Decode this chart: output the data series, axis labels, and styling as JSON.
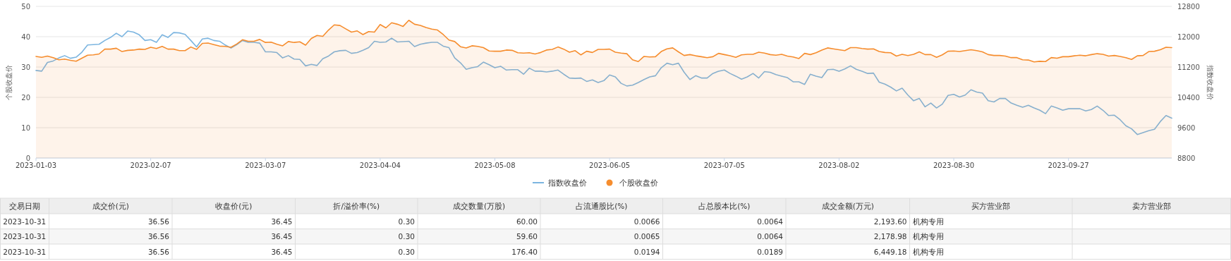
{
  "chart_data": [
    {
      "type": "line",
      "ylabel": "个股收盘价",
      "y2label": "指数收盘价",
      "ylim": [
        0,
        50
      ],
      "yticks": [
        0,
        10,
        20,
        30,
        40,
        50
      ],
      "y2lim": [
        8800,
        12800
      ],
      "y2ticks": [
        8800,
        9600,
        10400,
        11200,
        12000,
        12800
      ],
      "grid": "y",
      "legend": "bottom",
      "marker": "none",
      "categories": [
        "2023-01-03",
        null,
        null,
        null,
        null,
        null,
        null,
        null,
        null,
        null,
        null,
        null,
        null,
        null,
        null,
        null,
        null,
        null,
        null,
        null,
        "2023-02-07",
        null,
        null,
        null,
        null,
        null,
        null,
        null,
        null,
        null,
        null,
        null,
        null,
        null,
        null,
        null,
        null,
        null,
        null,
        null,
        "2023-03-07",
        null,
        null,
        null,
        null,
        null,
        null,
        null,
        null,
        null,
        null,
        null,
        null,
        null,
        null,
        null,
        null,
        null,
        null,
        null,
        "2023-04-04",
        null,
        null,
        null,
        null,
        null,
        null,
        null,
        null,
        null,
        null,
        null,
        null,
        null,
        null,
        null,
        null,
        null,
        null,
        null,
        "2023-05-08",
        null,
        null,
        null,
        null,
        null,
        null,
        null,
        null,
        null,
        null,
        null,
        null,
        null,
        null,
        null,
        null,
        null,
        null,
        null,
        "2023-06-05",
        null,
        null,
        null,
        null,
        null,
        null,
        null,
        null,
        null,
        null,
        null,
        null,
        null,
        null,
        null,
        null,
        null,
        null,
        null,
        "2023-07-05",
        null,
        null,
        null,
        null,
        null,
        null,
        null,
        null,
        null,
        null,
        null,
        null,
        null,
        null,
        null,
        null,
        null,
        null,
        null,
        "2023-08-02",
        null,
        null,
        null,
        null,
        null,
        null,
        null,
        null,
        null,
        null,
        null,
        null,
        null,
        null,
        null,
        null,
        null,
        null,
        null,
        "2023-08-30",
        null,
        null,
        null,
        null,
        null,
        null,
        null,
        null,
        null,
        null,
        null,
        null,
        null,
        null,
        null,
        null,
        null,
        null,
        null,
        "2023-09-27",
        null,
        null,
        null,
        null,
        null,
        null,
        null,
        null,
        null,
        null,
        null,
        null,
        null,
        null,
        null,
        null,
        null,
        null
      ],
      "series": [
        {
          "name": "指数收盘价",
          "type": "line",
          "axis": "y2",
          "color": "#7cb5e0",
          "values": [
            11110,
            11090,
            11320,
            11360,
            11440,
            11500,
            11430,
            11460,
            11590,
            11780,
            11790,
            11800,
            11900,
            11980,
            12090,
            12000,
            12150,
            12120,
            12050,
            11900,
            11920,
            11850,
            12050,
            11980,
            12110,
            12100,
            12060,
            11900,
            11730,
            11940,
            11960,
            11900,
            11880,
            11780,
            11700,
            11790,
            11900,
            11850,
            11850,
            11830,
            11600,
            11600,
            11580,
            11440,
            11500,
            11410,
            11400,
            11230,
            11270,
            11240,
            11420,
            11490,
            11600,
            11630,
            11640,
            11560,
            11580,
            11640,
            11710,
            11880,
            11850,
            11860,
            11960,
            11860,
            11870,
            11880,
            11740,
            11800,
            11830,
            11850,
            11850,
            11750,
            11710,
            11440,
            11310,
            11140,
            11180,
            11210,
            11330,
            11260,
            11180,
            11220,
            11120,
            11130,
            11130,
            11010,
            11170,
            11090,
            11090,
            11070,
            11090,
            11120,
            11010,
            10910,
            10900,
            10910,
            10820,
            10860,
            10790,
            10840,
            10990,
            10940,
            10770,
            10700,
            10720,
            10790,
            10870,
            10940,
            10970,
            11180,
            11300,
            11260,
            11300,
            11060,
            10870,
            10970,
            10910,
            10910,
            11030,
            11090,
            11120,
            11030,
            10960,
            10880,
            10940,
            11030,
            10910,
            11080,
            11060,
            11000,
            10960,
            10920,
            10810,
            10810,
            10740,
            11010,
            10960,
            10920,
            11130,
            11140,
            11090,
            11150,
            11230,
            11140,
            11090,
            11030,
            11040,
            10800,
            10750,
            10670,
            10570,
            10640,
            10460,
            10310,
            10370,
            10150,
            10250,
            10120,
            10220,
            10450,
            10480,
            10410,
            10460,
            10600,
            10540,
            10510,
            10310,
            10280,
            10370,
            10370,
            10250,
            10190,
            10140,
            10190,
            10120,
            10060,
            9970,
            10170,
            10120,
            10060,
            10100,
            10100,
            10100,
            10040,
            10080,
            10170,
            10060,
            9920,
            9930,
            9810,
            9650,
            9570,
            9420,
            9470,
            9520,
            9560,
            9760,
            9920,
            9850
          ]
        },
        {
          "name": "个股收盘价",
          "type": "area",
          "color": "#f68d2e",
          "values": [
            33.5,
            33.2,
            33.6,
            33.1,
            32.4,
            32.6,
            32.2,
            31.9,
            32.9,
            33.9,
            34.0,
            34.3,
            35.9,
            35.9,
            36.2,
            35.1,
            35.5,
            35.6,
            35.9,
            35.8,
            36.5,
            36.1,
            36.8,
            35.9,
            35.9,
            35.4,
            35.4,
            36.6,
            35.8,
            37.8,
            37.9,
            37.4,
            36.9,
            36.8,
            36.5,
            37.6,
            39.0,
            38.5,
            38.5,
            39.1,
            38.1,
            38.2,
            37.5,
            37.0,
            38.4,
            38.1,
            38.3,
            37.2,
            39.4,
            40.4,
            40.1,
            42.2,
            43.9,
            43.7,
            42.6,
            41.5,
            41.9,
            40.7,
            41.7,
            41.5,
            44.0,
            42.9,
            44.6,
            44.1,
            43.4,
            45.4,
            44.1,
            43.7,
            43.0,
            42.5,
            42.2,
            40.7,
            38.9,
            38.4,
            36.7,
            36.3,
            37.0,
            36.8,
            36.4,
            35.3,
            35.2,
            35.2,
            35.6,
            35.5,
            34.7,
            34.6,
            34.7,
            34.3,
            34.8,
            35.6,
            35.8,
            36.6,
            35.9,
            34.9,
            35.4,
            34.0,
            35.2,
            34.8,
            35.8,
            35.8,
            35.9,
            34.9,
            34.6,
            34.4,
            32.4,
            31.8,
            33.5,
            33.3,
            33.4,
            35.1,
            36.0,
            36.3,
            35.0,
            33.8,
            34.1,
            33.7,
            33.4,
            33.1,
            33.4,
            34.5,
            34.1,
            33.7,
            33.2,
            34.0,
            34.2,
            34.2,
            34.9,
            34.6,
            34.1,
            33.9,
            34.2,
            33.6,
            33.3,
            32.8,
            34.5,
            34.1,
            34.7,
            35.6,
            36.3,
            36.0,
            35.7,
            35.4,
            36.4,
            36.4,
            36.1,
            35.9,
            36.0,
            35.1,
            34.8,
            34.7,
            33.6,
            34.2,
            33.8,
            34.2,
            35.0,
            34.1,
            34.1,
            33.2,
            34.0,
            35.2,
            35.3,
            35.1,
            35.4,
            35.7,
            35.4,
            35.0,
            34.1,
            33.8,
            33.8,
            33.6,
            33.1,
            33.1,
            32.4,
            32.3,
            31.7,
            31.9,
            31.8,
            33.1,
            32.9,
            33.4,
            33.4,
            33.7,
            33.9,
            33.7,
            34.1,
            34.4,
            34.2,
            33.6,
            33.8,
            33.5,
            33.1,
            32.5,
            33.7,
            33.8,
            35.1,
            35.2,
            35.7,
            36.5,
            36.4
          ]
        }
      ]
    },
    {
      "type": "other",
      "categories": [
        "交易日期",
        "成交价(元)",
        "收盘价(元)",
        "折/溢价率(%)",
        "成交数量(万股)",
        "占流通股比(%)",
        "占总股本比(%)",
        "成交金额(万元)",
        "买方营业部",
        "卖方营业部"
      ],
      "annotations": [
        "2023-10-31",
        "36.56",
        "36.45",
        "0.30",
        "60.00",
        "0.0066",
        "0.0064",
        "2,193.60",
        "机构专用",
        "2023-10-31",
        "36.56",
        "36.45",
        "0.30",
        "59.60",
        "0.0065",
        "0.0064",
        "2,178.98",
        "机构专用",
        "2023-10-31",
        "36.56",
        "36.45",
        "0.30",
        "176.40",
        "0.0194",
        "0.0189",
        "6,449.18",
        "机构专用"
      ]
    }
  ]
}
